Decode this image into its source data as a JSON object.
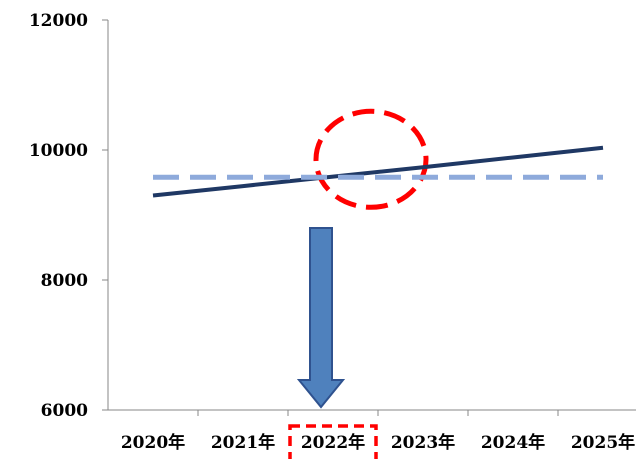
{
  "chart_data": {
    "type": "line",
    "title": "",
    "xlabel": "",
    "ylabel": "",
    "categories": [
      "2020年",
      "2021年",
      "2022年",
      "2023年",
      "2024年",
      "2025年"
    ],
    "ylim": [
      6000,
      12000
    ],
    "yticks": [
      "6000",
      "8000",
      "10000",
      "12000"
    ],
    "grid": false,
    "series": [
      {
        "style": "solid",
        "color": "#1f3864",
        "values": [
          9300,
          9445,
          9590,
          9735,
          9885,
          10035
        ]
      },
      {
        "style": "dashed",
        "color": "#8eaadb",
        "values": [
          9580,
          9580,
          9580,
          9580,
          9580,
          9580
        ]
      }
    ],
    "annotations": {
      "intersection_circle": {
        "category_index": 2,
        "color": "#ff0000"
      },
      "arrow": {
        "from_category_index": 2,
        "color": "#4f81bd",
        "border": "#2f528f"
      },
      "highlighted_tick_label": {
        "category_index": 2,
        "color": "#ff0000"
      }
    }
  }
}
